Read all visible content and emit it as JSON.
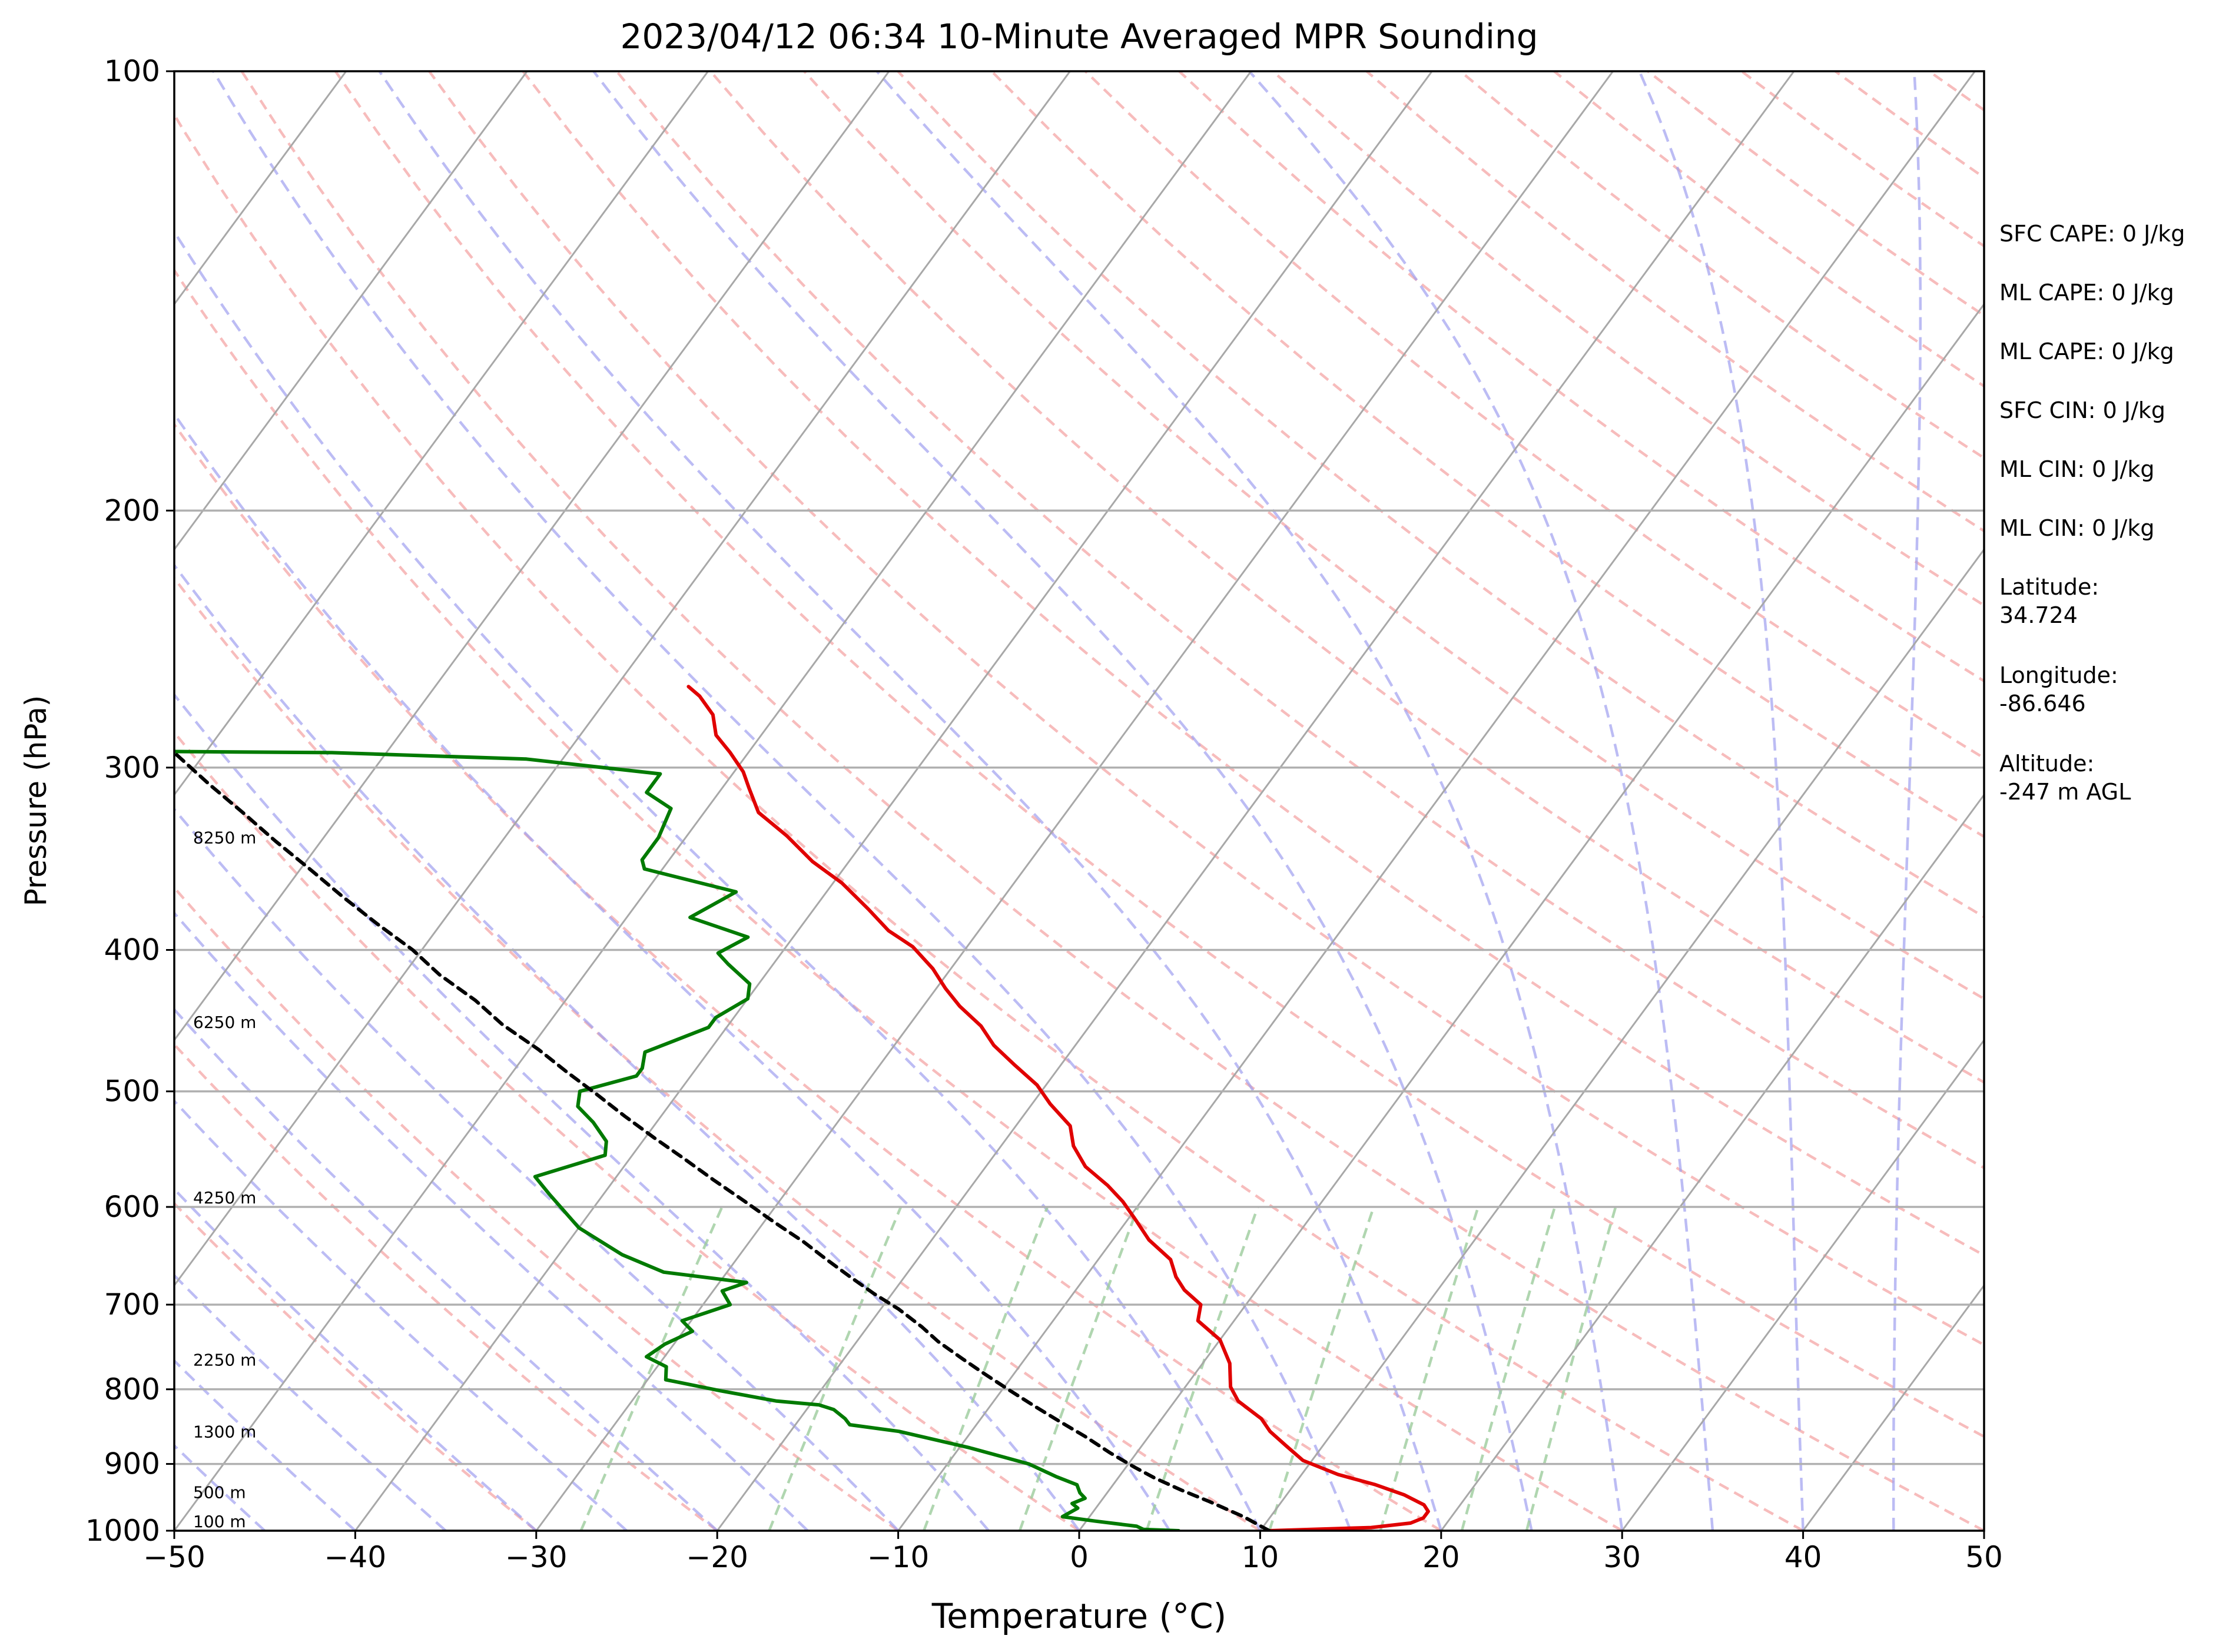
{
  "chart_data": {
    "type": "line",
    "subtype": "skew-T log-p sounding",
    "title": "2023/04/12 06:34 10-Minute Averaged MPR Sounding",
    "xlabel": "Temperature (°C)",
    "ylabel": "Pressure (hPa)",
    "xlim": [
      -50,
      50
    ],
    "ylim": [
      1000,
      100
    ],
    "y_scale": "log",
    "skew": true,
    "grid": true,
    "x_ticks": [
      -50,
      -40,
      -30,
      -20,
      -10,
      0,
      10,
      20,
      30,
      40,
      50
    ],
    "x_tick_labels": [
      "−50",
      "−40",
      "−30",
      "−20",
      "−10",
      "0",
      "10",
      "20",
      "30",
      "40",
      "50"
    ],
    "y_ticks": [
      1000,
      900,
      800,
      700,
      600,
      500,
      400,
      300,
      200,
      100
    ],
    "y_tick_labels": [
      "1000",
      "900",
      "800",
      "700",
      "600",
      "500",
      "400",
      "300",
      "200",
      "100"
    ],
    "height_labels": [
      {
        "text": "100 m",
        "pressure": 1000
      },
      {
        "text": "500 m",
        "pressure": 955
      },
      {
        "text": "1300 m",
        "pressure": 868
      },
      {
        "text": "2250 m",
        "pressure": 775
      },
      {
        "text": "4250 m",
        "pressure": 600
      },
      {
        "text": "6250 m",
        "pressure": 455
      },
      {
        "text": "8250 m",
        "pressure": 340
      }
    ],
    "annotations": [
      "SFC CAPE: 0 J/kg",
      "ML CAPE: 0 J/kg",
      "ML CAPE: 0 J/kg",
      "SFC CIN: 0 J/kg",
      "ML CIN: 0 J/kg",
      "ML CIN: 0 J/kg",
      "Latitude:\n34.724",
      "Longitude:\n-86.646",
      "Altitude:\n-247 m AGL"
    ],
    "series": [
      {
        "color": "#e00000",
        "style": "solid",
        "points": [
          [
            10.5,
            1000
          ],
          [
            16,
            995
          ],
          [
            18,
            988
          ],
          [
            18.5,
            980
          ],
          [
            18.5,
            970
          ],
          [
            18,
            960
          ],
          [
            16.5,
            945
          ],
          [
            14.5,
            930
          ],
          [
            12,
            915
          ],
          [
            9.5,
            895
          ],
          [
            8,
            875
          ],
          [
            6.5,
            855
          ],
          [
            5.5,
            838
          ],
          [
            3.5,
            815
          ],
          [
            2.5,
            797
          ],
          [
            1.5,
            768
          ],
          [
            0,
            740
          ],
          [
            -2,
            718
          ],
          [
            -2.5,
            700
          ],
          [
            -4,
            684
          ],
          [
            -5,
            670
          ],
          [
            -6,
            652
          ],
          [
            -8,
            632
          ],
          [
            -9.5,
            613
          ],
          [
            -11,
            595
          ],
          [
            -12.5,
            580
          ],
          [
            -14.5,
            563
          ],
          [
            -16,
            545
          ],
          [
            -17,
            528
          ],
          [
            -19,
            510
          ],
          [
            -20.5,
            495
          ],
          [
            -22.5,
            480
          ],
          [
            -24.5,
            465
          ],
          [
            -26,
            451
          ],
          [
            -28,
            437
          ],
          [
            -29.5,
            425
          ],
          [
            -31,
            412
          ],
          [
            -33,
            398
          ],
          [
            -35,
            388
          ],
          [
            -37,
            375
          ],
          [
            -39.5,
            360
          ],
          [
            -42,
            348
          ],
          [
            -44.5,
            334
          ],
          [
            -47,
            322
          ],
          [
            -48.5,
            310
          ],
          [
            -49.5,
            302
          ],
          [
            -51,
            293
          ],
          [
            -52.5,
            285
          ],
          [
            -53.5,
            276
          ],
          [
            -55,
            268
          ],
          [
            -56,
            264
          ]
        ]
      },
      {
        "color": "#007a00",
        "style": "solid",
        "points": [
          [
            5.5,
            1000
          ],
          [
            3.5,
            998
          ],
          [
            3,
            993
          ],
          [
            0.5,
            985
          ],
          [
            -1.5,
            978
          ],
          [
            -1,
            965
          ],
          [
            -1.5,
            958
          ],
          [
            -1,
            950
          ],
          [
            -1.5,
            942
          ],
          [
            -2,
            930
          ],
          [
            -3.5,
            918
          ],
          [
            -5.5,
            900
          ],
          [
            -9.5,
            877
          ],
          [
            -14,
            855
          ],
          [
            -17,
            846
          ],
          [
            -17.5,
            838
          ],
          [
            -18.5,
            826
          ],
          [
            -19.5,
            820
          ],
          [
            -22,
            815
          ],
          [
            -25.5,
            802
          ],
          [
            -29,
            788
          ],
          [
            -29.5,
            772
          ],
          [
            -31,
            760
          ],
          [
            -30.5,
            745
          ],
          [
            -29.5,
            730
          ],
          [
            -30.5,
            718
          ],
          [
            -28.5,
            700
          ],
          [
            -29.5,
            685
          ],
          [
            -28.5,
            676
          ],
          [
            -33.5,
            665
          ],
          [
            -36.5,
            647
          ],
          [
            -40,
            620
          ],
          [
            -43,
            588
          ],
          [
            -44.5,
            572
          ],
          [
            -41.5,
            553
          ],
          [
            -42,
            541
          ],
          [
            -43.5,
            525
          ],
          [
            -45,
            512
          ],
          [
            -45.5,
            500
          ],
          [
            -43,
            488
          ],
          [
            -43,
            482
          ],
          [
            -43.5,
            470
          ],
          [
            -41,
            452
          ],
          [
            -41,
            445
          ],
          [
            -40,
            432
          ],
          [
            -40.5,
            422
          ],
          [
            -42.5,
            409
          ],
          [
            -43.5,
            402
          ],
          [
            -42.5,
            392
          ],
          [
            -46.5,
            380
          ],
          [
            -45,
            365
          ],
          [
            -51,
            352
          ],
          [
            -51.5,
            347
          ],
          [
            -51.5,
            335
          ],
          [
            -52,
            320
          ],
          [
            -54,
            312
          ],
          [
            -54,
            303
          ],
          [
            -62,
            296
          ],
          [
            -73,
            293
          ],
          [
            -90,
            292
          ]
        ]
      },
      {
        "color": "#000000",
        "style": "dashed",
        "points": [
          [
            10.5,
            1000
          ],
          [
            8.5,
            978
          ],
          [
            6,
            955
          ],
          [
            4,
            938
          ],
          [
            2,
            920
          ],
          [
            0.5,
            905
          ],
          [
            -1.5,
            884
          ],
          [
            -3.5,
            862
          ],
          [
            -5.5,
            842
          ],
          [
            -7.5,
            822
          ],
          [
            -9.5,
            802
          ],
          [
            -11.5,
            782
          ],
          [
            -13.5,
            762
          ],
          [
            -15.5,
            742
          ],
          [
            -17,
            725
          ],
          [
            -19,
            705
          ],
          [
            -21,
            688
          ],
          [
            -23,
            670
          ],
          [
            -25,
            652
          ],
          [
            -27,
            634
          ],
          [
            -29.5,
            614
          ],
          [
            -32,
            594
          ],
          [
            -34.5,
            575
          ],
          [
            -37,
            556
          ],
          [
            -39.5,
            538
          ],
          [
            -42,
            520
          ],
          [
            -44.5,
            502
          ],
          [
            -47,
            485
          ],
          [
            -49.5,
            468
          ],
          [
            -52.5,
            450
          ],
          [
            -55,
            433
          ],
          [
            -58,
            416
          ],
          [
            -60.5,
            400
          ],
          [
            -63.5,
            384
          ],
          [
            -66.5,
            368
          ],
          [
            -69.5,
            352
          ],
          [
            -72.5,
            337
          ],
          [
            -75.5,
            322
          ],
          [
            -78.5,
            308
          ],
          [
            -81.5,
            294
          ],
          [
            -84.5,
            280
          ],
          [
            -87.5,
            266
          ]
        ]
      }
    ]
  }
}
